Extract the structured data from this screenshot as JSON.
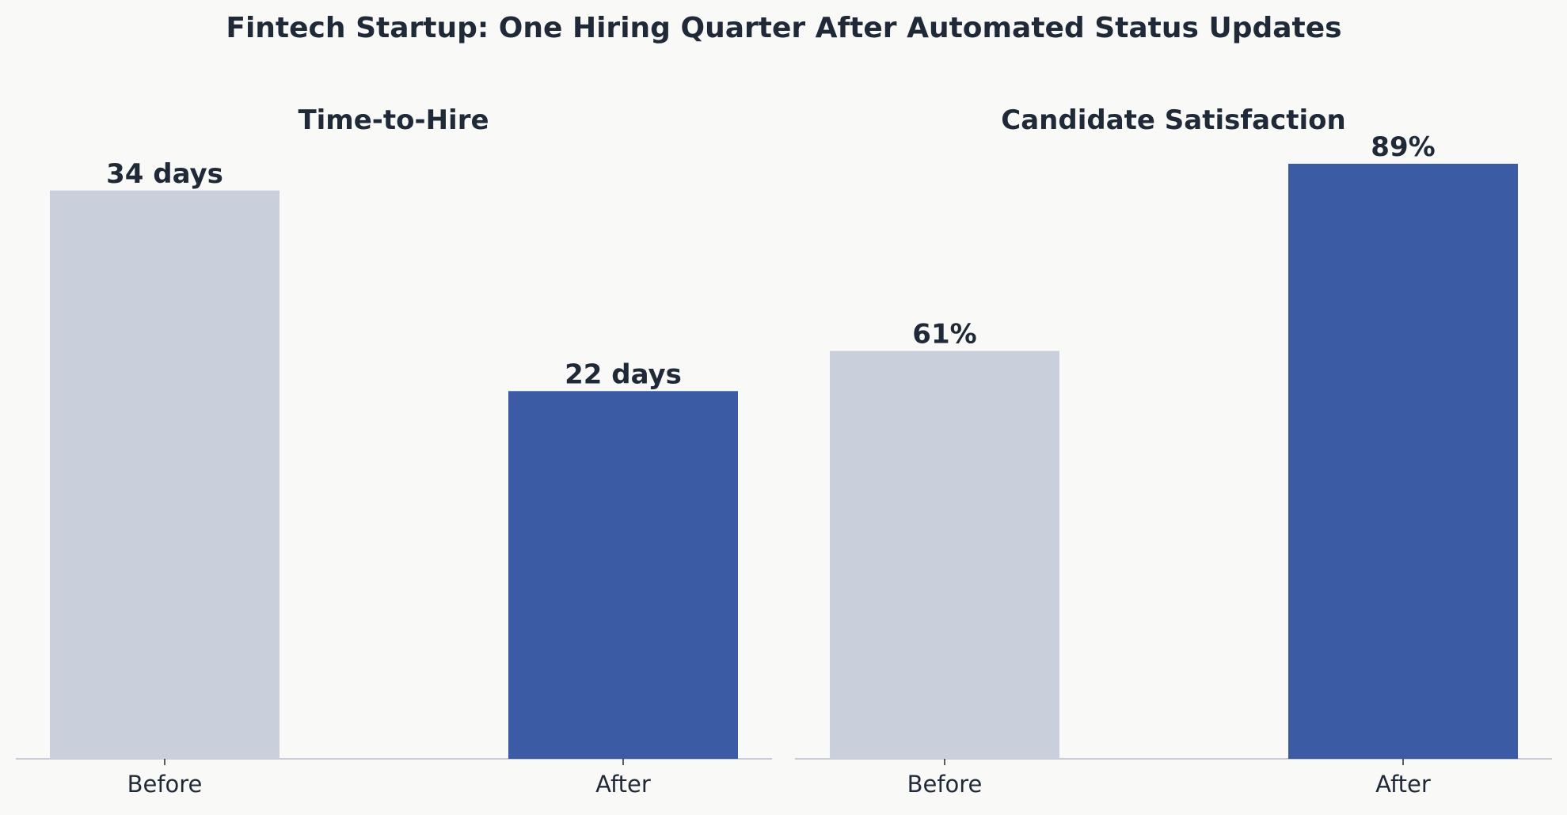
{
  "chart_data": {
    "title": "Fintech Startup: One Hiring Quarter After Automated Status Updates",
    "colors": {
      "background": "#f9f9f7",
      "before": "#c9d0dc",
      "after": "#3b5ba4",
      "text": "#1f2937",
      "axis": "#c9cdd3"
    },
    "panels": [
      {
        "type": "bar",
        "title": "Time-to-Hire",
        "categories": [
          "Before",
          "After"
        ],
        "values": [
          34,
          22
        ],
        "value_labels": [
          "34 days",
          "22 days"
        ],
        "ylim": [
          0,
          40
        ],
        "grid": false
      },
      {
        "type": "bar",
        "title": "Candidate Satisfaction",
        "categories": [
          "Before",
          "After"
        ],
        "values": [
          61,
          89
        ],
        "value_labels": [
          "61%",
          "89%"
        ],
        "ylim": [
          0,
          100
        ],
        "grid": false
      }
    ]
  }
}
